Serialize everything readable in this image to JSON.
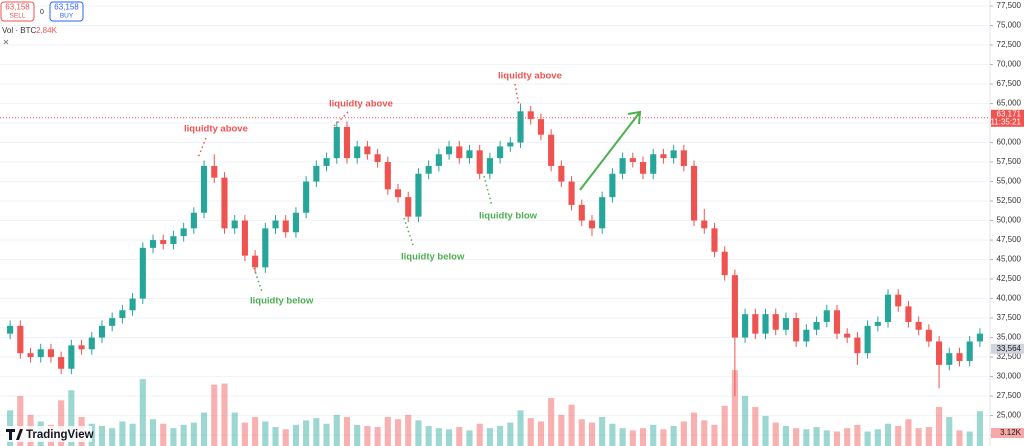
{
  "toolbar": {
    "sell_price": "63,158",
    "sell": "SELL",
    "spread": "0",
    "buy_price": "63,158",
    "buy": "BUY",
    "vol_label": "Vol · BTC",
    "vol_value": "2.84K",
    "logo": "TradingView"
  },
  "chart_data": {
    "type": "candlestick",
    "up_color": "#26a69a",
    "down_color": "#ef5350",
    "ylim": [
      21100,
      78270
    ],
    "yticks": [
      {
        "value": 22500,
        "label": "22,500"
      },
      {
        "value": 25000,
        "label": "25,000"
      },
      {
        "value": 27500,
        "label": "27,500"
      },
      {
        "value": 30000,
        "label": "30,000"
      },
      {
        "value": 32500,
        "label": "32,500"
      },
      {
        "value": 35000,
        "label": "35,000"
      },
      {
        "value": 37500,
        "label": "37,500"
      },
      {
        "value": 40000,
        "label": "40,000"
      },
      {
        "value": 42500,
        "label": "42,500"
      },
      {
        "value": 45000,
        "label": "45,000"
      },
      {
        "value": 47500,
        "label": "47,500"
      },
      {
        "value": 50000,
        "label": "50,000"
      },
      {
        "value": 52500,
        "label": "52,500"
      },
      {
        "value": 55000,
        "label": "55,000"
      },
      {
        "value": 57500,
        "label": "57,500"
      },
      {
        "value": 60000,
        "label": "60,000"
      },
      {
        "value": 62500,
        "label": "62,500"
      },
      {
        "value": 65000,
        "label": "65,000"
      },
      {
        "value": 67500,
        "label": "67,500"
      },
      {
        "value": 70000,
        "label": "70,000"
      },
      {
        "value": 72500,
        "label": "72,500"
      },
      {
        "value": 75000,
        "label": "75,000"
      },
      {
        "value": 77500,
        "label": "77,500"
      }
    ],
    "open": [
      35500,
      36500,
      33000,
      32500,
      33500,
      32500,
      31000,
      34000,
      33500,
      35000,
      36500,
      37500,
      38500,
      40000,
      46500,
      47500,
      47000,
      48000,
      49000,
      51000,
      57000,
      55500,
      49000,
      50000,
      45500,
      44000,
      49000,
      50000,
      48500,
      51000,
      55000,
      57000,
      58000,
      62000,
      58000,
      59500,
      58500,
      57500,
      54000,
      53000,
      50500,
      56000,
      57000,
      58500,
      59500,
      58000,
      59000,
      56000,
      58000,
      59500,
      60000,
      64000,
      63000,
      61000,
      57000,
      55000,
      52000,
      50000,
      49000,
      53000,
      56000,
      58000,
      57500,
      56000,
      58500,
      58000,
      59000,
      57000,
      50000,
      49000,
      46000,
      43000,
      35000,
      38000,
      35500,
      38000,
      36000,
      37500,
      34500,
      36000,
      37000,
      38500,
      35500,
      35000,
      33000,
      36500,
      37000,
      40500,
      39000,
      37000,
      36000,
      34500,
      31500,
      33000,
      32000,
      34500
    ],
    "high": [
      37200,
      37200,
      33700,
      34200,
      34200,
      33200,
      34700,
      34700,
      35700,
      37200,
      38200,
      39200,
      40700,
      47200,
      48200,
      48200,
      48700,
      49700,
      51700,
      57700,
      58500,
      56200,
      50700,
      50700,
      46200,
      49700,
      50700,
      50700,
      51700,
      55700,
      57700,
      58700,
      62700,
      62700,
      60200,
      60200,
      59200,
      58200,
      54700,
      53700,
      56700,
      57700,
      59200,
      60200,
      60200,
      59700,
      59700,
      58700,
      60200,
      60700,
      65000,
      64700,
      63700,
      61700,
      57700,
      55700,
      52700,
      50700,
      53700,
      56700,
      58700,
      58700,
      58200,
      59200,
      59200,
      59700,
      59700,
      57700,
      51500,
      49700,
      46700,
      43700,
      38700,
      38700,
      38700,
      38700,
      38200,
      38200,
      36700,
      37700,
      39200,
      39200,
      36200,
      35700,
      37200,
      37700,
      41200,
      41200,
      39700,
      37700,
      36700,
      35200,
      33700,
      33700,
      35200,
      36200
    ],
    "low": [
      34800,
      32300,
      31800,
      31800,
      31800,
      30300,
      30300,
      32800,
      32800,
      34300,
      35800,
      36800,
      37800,
      39300,
      45800,
      46300,
      46300,
      47300,
      48300,
      50300,
      54800,
      48300,
      48300,
      44800,
      43300,
      43300,
      48300,
      47800,
      47800,
      50300,
      54300,
      56300,
      57300,
      57300,
      57300,
      57800,
      56800,
      53300,
      52300,
      49800,
      49800,
      55300,
      56300,
      57800,
      57300,
      57300,
      55300,
      55300,
      57300,
      58800,
      59300,
      62300,
      60300,
      56300,
      54300,
      51300,
      49300,
      48000,
      48300,
      52300,
      55300,
      56800,
      55300,
      55300,
      57300,
      57300,
      56300,
      49300,
      48300,
      45300,
      42300,
      27500,
      34300,
      34800,
      34800,
      35300,
      35300,
      33800,
      33800,
      35300,
      36300,
      34800,
      34300,
      31500,
      32300,
      35800,
      36300,
      38300,
      36300,
      35300,
      33800,
      28500,
      30800,
      31300,
      31300,
      33800
    ],
    "close": [
      36500,
      33000,
      32500,
      33500,
      32500,
      31000,
      34000,
      33500,
      35000,
      36500,
      37500,
      38500,
      40000,
      46500,
      47500,
      47000,
      48000,
      49000,
      51000,
      57000,
      55500,
      49000,
      50000,
      45500,
      44000,
      49000,
      50000,
      48500,
      51000,
      55000,
      57000,
      58000,
      62000,
      58000,
      59500,
      58500,
      57500,
      54000,
      53000,
      50500,
      56000,
      57000,
      58500,
      59500,
      58000,
      59000,
      56000,
      58000,
      59500,
      60000,
      64000,
      63000,
      61000,
      57000,
      55000,
      52000,
      50000,
      49000,
      53000,
      56000,
      58000,
      57500,
      56000,
      58500,
      58000,
      59000,
      57000,
      50000,
      49000,
      46000,
      43000,
      35000,
      38000,
      35500,
      38000,
      36000,
      37500,
      34500,
      36000,
      37000,
      38500,
      35500,
      35000,
      33000,
      36500,
      37000,
      40500,
      39000,
      37000,
      36000,
      34500,
      31500,
      33000,
      32000,
      34500,
      35500
    ],
    "volume_ylim": [
      0,
      40
    ],
    "volume": [
      3.2,
      4.5,
      2.8,
      2.2,
      1.9,
      4.1,
      5.0,
      2.6,
      2.0,
      1.8,
      1.6,
      2.2,
      2.0,
      6.0,
      2.4,
      2.0,
      1.6,
      1.9,
      2.1,
      3.0,
      5.5,
      5.6,
      3.0,
      2.1,
      2.6,
      2.2,
      1.7,
      1.5,
      1.9,
      2.3,
      2.5,
      2.0,
      2.8,
      2.6,
      1.9,
      1.8,
      1.7,
      2.6,
      2.4,
      2.8,
      2.3,
      1.8,
      1.6,
      1.5,
      1.7,
      1.4,
      2.0,
      1.6,
      1.8,
      2.1,
      3.2,
      2.5,
      2.2,
      4.3,
      2.8,
      3.7,
      2.4,
      2.1,
      2.6,
      2.0,
      1.6,
      1.4,
      1.6,
      1.9,
      1.5,
      1.8,
      2.2,
      3.0,
      2.3,
      1.9,
      3.6,
      6.8,
      4.5,
      3.5,
      2.7,
      2.1,
      1.8,
      1.6,
      1.5,
      1.7,
      1.4,
      1.3,
      1.6,
      1.9,
      1.3,
      1.5,
      2.0,
      1.8,
      2.4,
      1.6,
      1.7,
      3.5,
      2.6,
      1.4,
      1.3,
      3.12
    ],
    "volume_last_label": "3.12K",
    "last_price": {
      "value": 63171,
      "label": "63,171"
    },
    "countdown": "11:35:21",
    "marker_price": {
      "value": 33564,
      "label": "33,564"
    },
    "annotations": [
      "liquidty above",
      "liquidty above",
      "liquidty above",
      "liquidty below",
      "liquidty below",
      "liquidty blow"
    ]
  }
}
